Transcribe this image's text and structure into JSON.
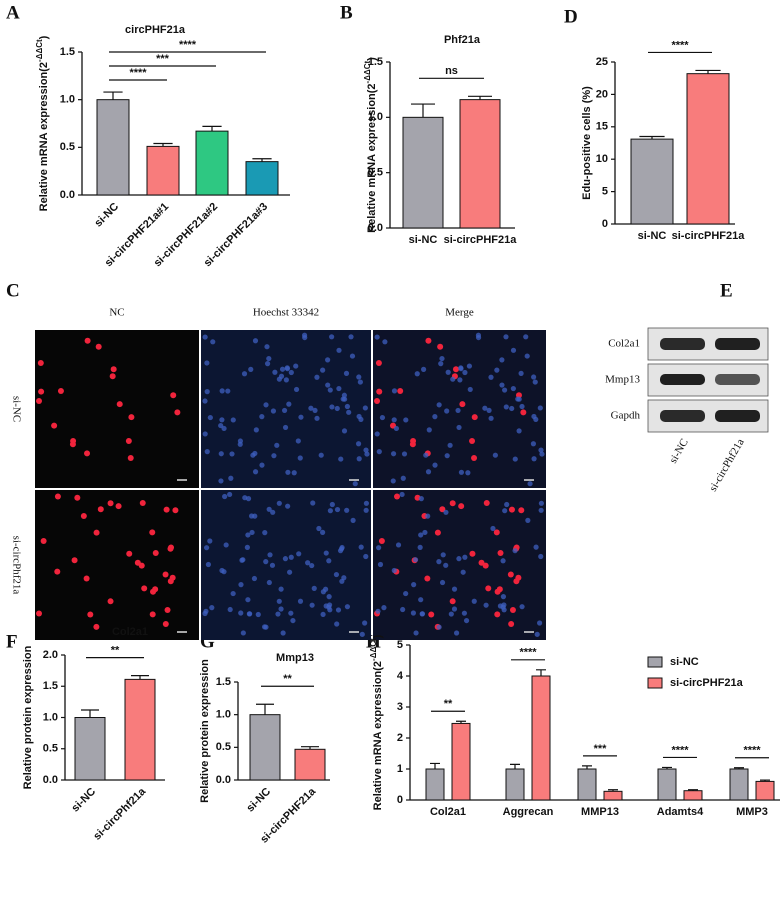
{
  "panel_labels": [
    "A",
    "B",
    "C",
    "D",
    "E",
    "F",
    "G",
    "H"
  ],
  "chart_data": [
    {
      "type": "bar",
      "title": "circPHF21a",
      "categories": [
        "si-NC",
        "si-circPHF21a#1",
        "si-circPHF21a#2",
        "si-circPHF21a#3"
      ],
      "values": [
        1.0,
        0.51,
        0.67,
        0.35
      ],
      "errors": [
        0.08,
        0.03,
        0.05,
        0.03
      ],
      "colors": [
        "#a4a4ac",
        "#f87c7c",
        "#2ec882",
        "#1a9ab4"
      ],
      "ylim": [
        0,
        1.5
      ],
      "yticks": [
        {
          "value": 0,
          "label": "0.0"
        },
        0.5,
        {
          "value": 1,
          "label": "1.0"
        },
        1.5
      ],
      "ylabel": "Relative mRNA expression(2",
      "ylabel_sup": "-ΔΔCt",
      "ylabel_end": ")",
      "annotations": [
        {
          "label": "****",
          "between": [
            0,
            3
          ]
        },
        {
          "label": "***",
          "between": [
            0,
            2
          ]
        },
        {
          "label": "****",
          "between": [
            0,
            1
          ]
        }
      ]
    },
    {
      "type": "bar",
      "title": "Phf21a",
      "categories": [
        "si-NC",
        "si-circPHF21a"
      ],
      "values": [
        1.0,
        1.16
      ],
      "errors": [
        0.12,
        0.03
      ],
      "colors": [
        "#a4a4ac",
        "#f87c7c"
      ],
      "ylim": [
        0,
        1.5
      ],
      "yticks": [
        {
          "value": 0,
          "label": "0.0"
        },
        0.5,
        {
          "value": 1,
          "label": "1.0"
        },
        1.5
      ],
      "ylabel": "Relative mRNA expression(2",
      "ylabel_sup": "-ΔΔCt",
      "ylabel_end": ")",
      "annotations": [
        {
          "label": "ns",
          "between": [
            0,
            1
          ]
        }
      ]
    },
    {
      "type": "bar",
      "categories": [
        "si-NC",
        "si-circPHF21a"
      ],
      "values": [
        13.1,
        23.2
      ],
      "errors": [
        0.4,
        0.5
      ],
      "colors": [
        "#a4a4ac",
        "#f87c7c"
      ],
      "ylim": [
        0,
        25
      ],
      "yticks": [
        0,
        5,
        10,
        15,
        20,
        25
      ],
      "ylabel": "Edu-positive cells (%)",
      "annotations": [
        {
          "label": "****",
          "between": [
            0,
            1
          ]
        }
      ]
    },
    {
      "type": "bar",
      "title": "Col2a1",
      "categories": [
        "si-NC",
        "si-circPhf21a"
      ],
      "values": [
        1.0,
        1.61
      ],
      "errors": [
        0.12,
        0.06
      ],
      "colors": [
        "#a4a4ac",
        "#f87c7c"
      ],
      "ylim": [
        0,
        2
      ],
      "yticks": [
        {
          "value": 0,
          "label": "0.0"
        },
        0.5,
        {
          "value": 1,
          "label": "1.0"
        },
        1.5,
        {
          "value": 2,
          "label": "2.0"
        }
      ],
      "ylabel": "Relative protein expression",
      "annotations": [
        {
          "label": "**",
          "between": [
            0,
            1
          ]
        }
      ]
    },
    {
      "type": "bar",
      "title": "Mmp13",
      "categories": [
        "si-NC",
        "si-circPHF21a"
      ],
      "values": [
        1.0,
        0.47
      ],
      "errors": [
        0.16,
        0.04
      ],
      "colors": [
        "#a4a4ac",
        "#f87c7c"
      ],
      "ylim": [
        0,
        1.5
      ],
      "yticks": [
        {
          "value": 0,
          "label": "0.0"
        },
        0.5,
        {
          "value": 1,
          "label": "1.0"
        },
        1.5
      ],
      "ylabel": "Relative protein expression",
      "annotations": [
        {
          "label": "**",
          "between": [
            0,
            1
          ]
        }
      ]
    },
    {
      "type": "grouped-bar",
      "categories": [
        "Col2a1",
        "Aggrecan",
        "MMP13",
        "Adamts4",
        "MMP3"
      ],
      "series": [
        {
          "name": "si-NC",
          "color": "#a4a4ac",
          "values": [
            1.0,
            1.0,
            1.0,
            1.0,
            1.0
          ],
          "errors": [
            0.18,
            0.15,
            0.1,
            0.05,
            0.04
          ]
        },
        {
          "name": "si-circPHF21a",
          "color": "#f87c7c",
          "values": [
            2.47,
            4.0,
            0.28,
            0.3,
            0.6
          ],
          "errors": [
            0.07,
            0.2,
            0.05,
            0.03,
            0.04
          ]
        }
      ],
      "ylim": [
        0,
        5
      ],
      "yticks": [
        0,
        1,
        2,
        3,
        4,
        5
      ],
      "ylabel": "Relative mRNA expression(2",
      "ylabel_sup": "-ΔΔCt",
      "ylabel_end": ")",
      "annotations": [
        "**",
        "****",
        "***",
        "****",
        "****"
      ]
    }
  ],
  "figure_c": {
    "columns": [
      "NC",
      "Hoechst 33342",
      "Merge"
    ],
    "rows": [
      "si-NC",
      "si-circPhf21a"
    ]
  },
  "figure_e": {
    "rows": [
      "Col2a1",
      "Mmp13",
      "Gapdh"
    ],
    "columns": [
      "si-NC",
      "si-circPhf21a"
    ]
  }
}
